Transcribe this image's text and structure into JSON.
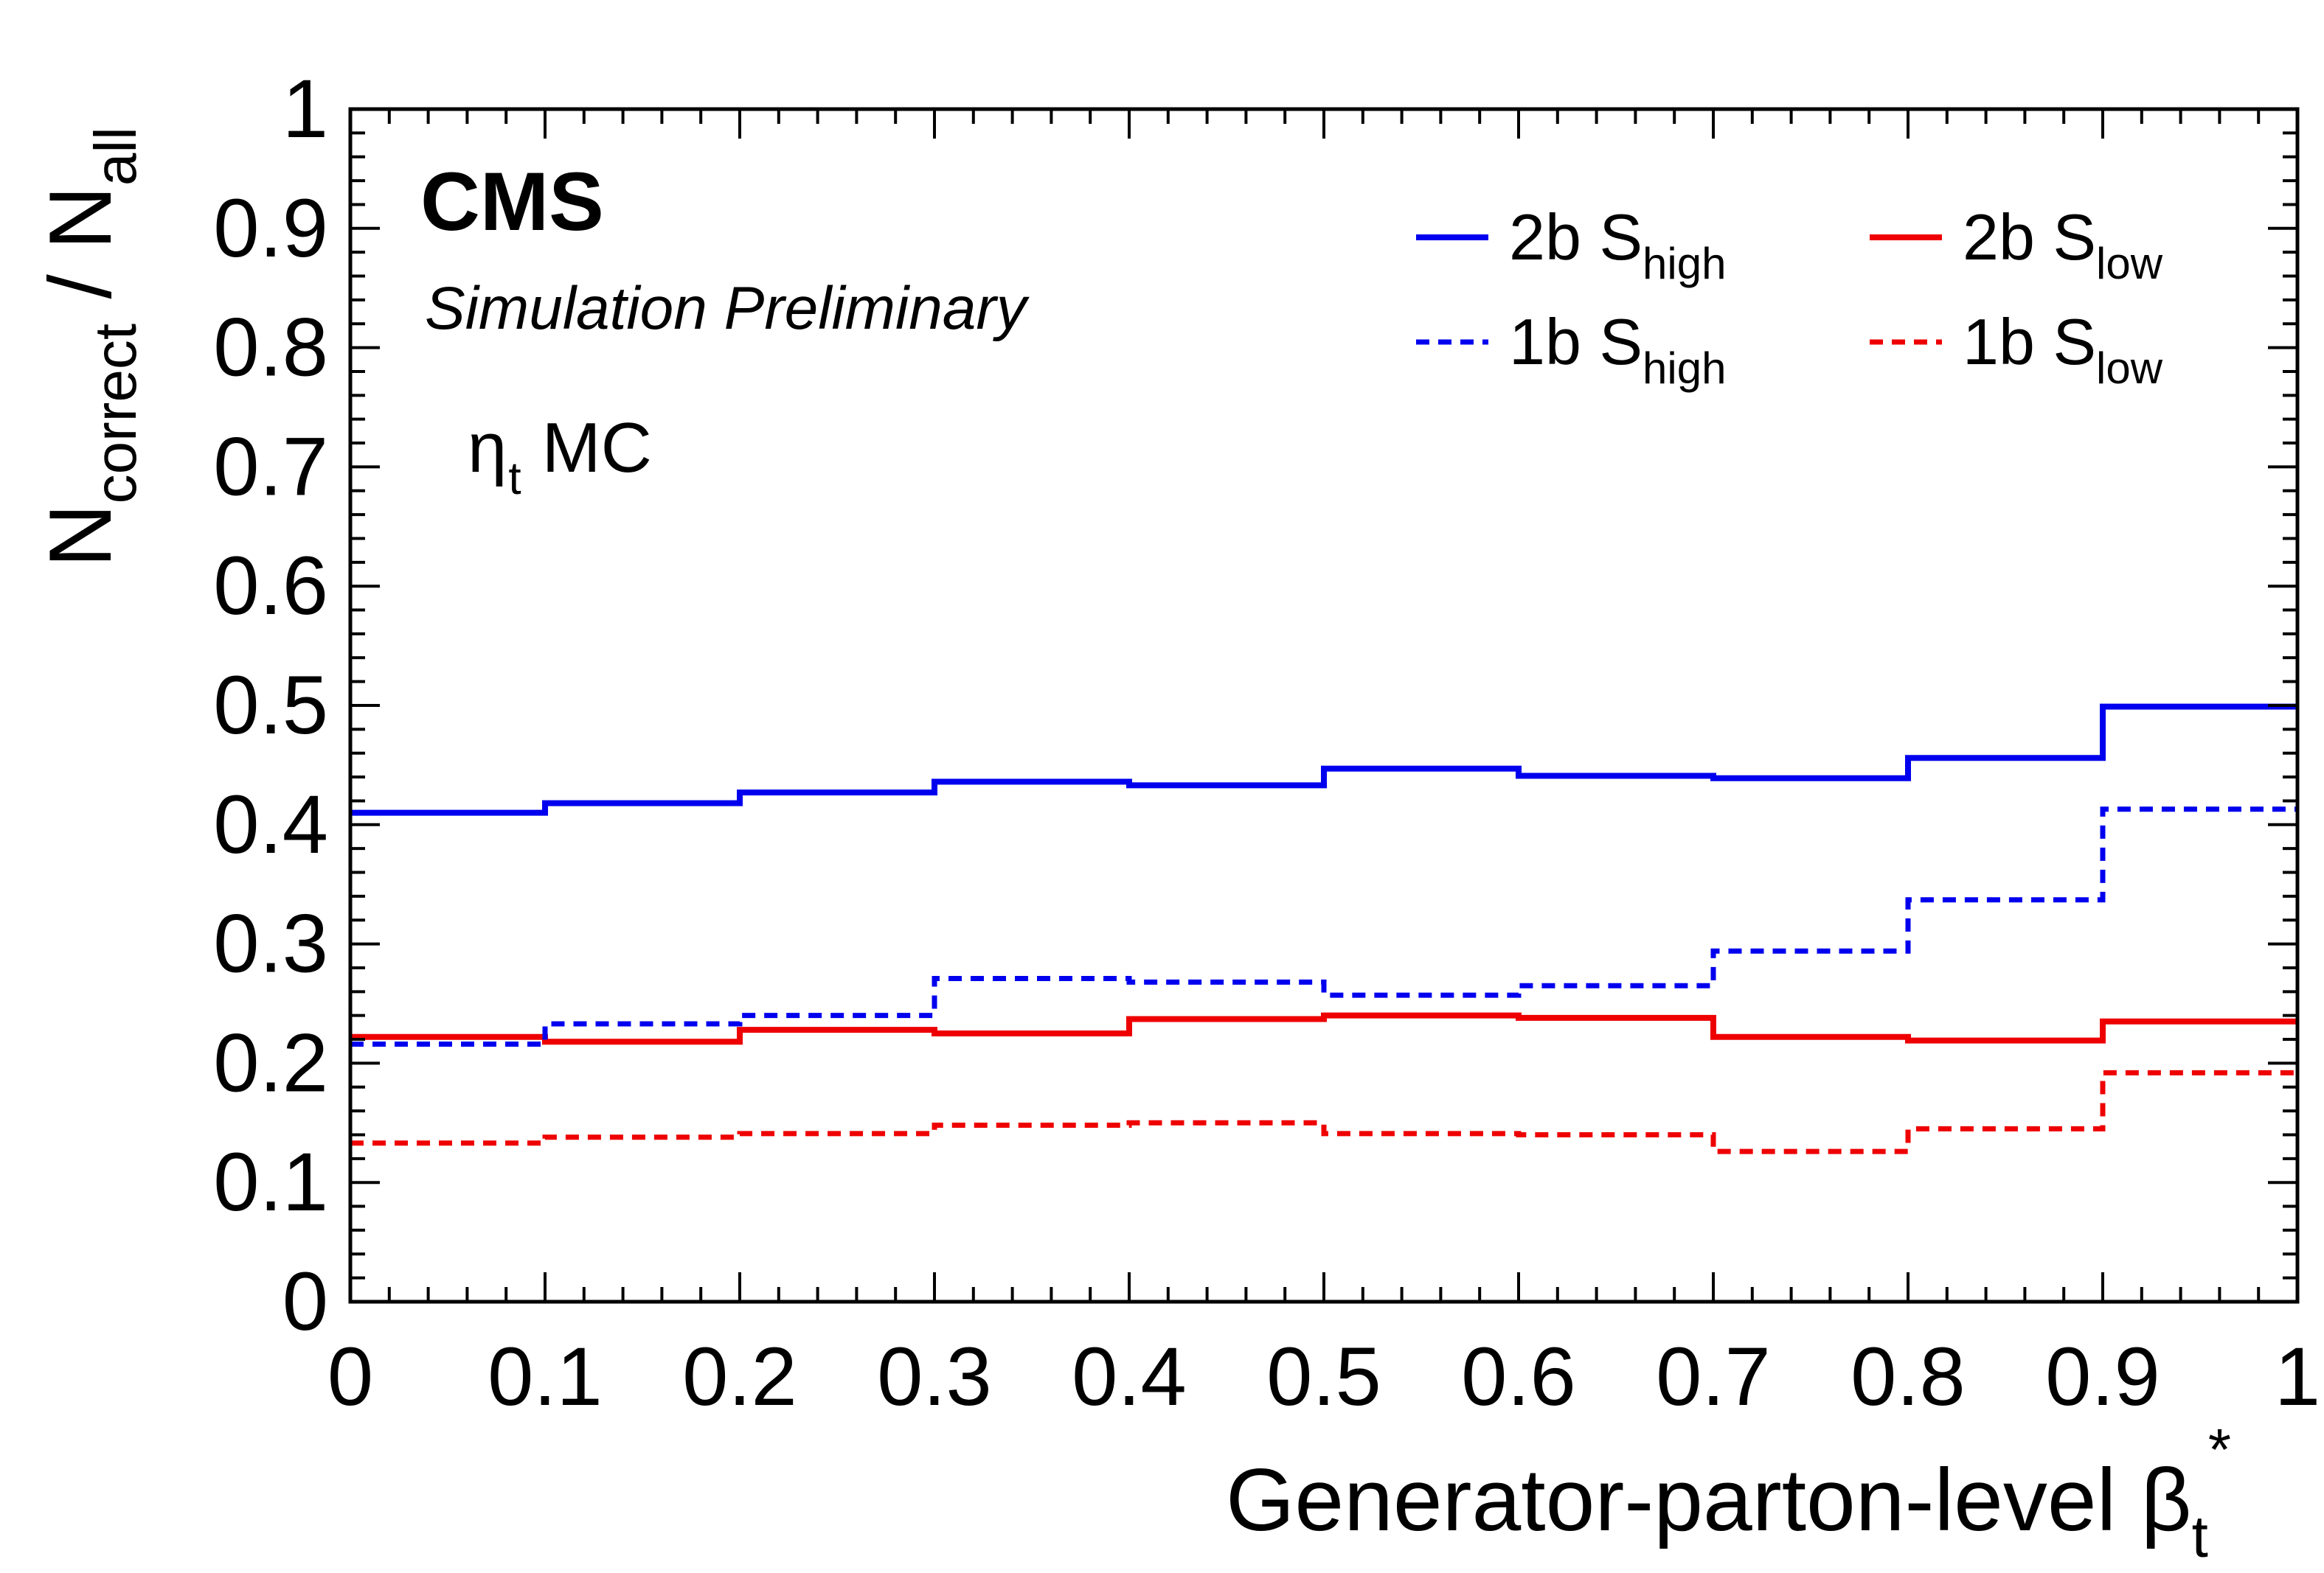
{
  "chart_data": {
    "type": "line",
    "style": "step-histogram",
    "title": "CMS",
    "subtitle": "Simulation Preliminary",
    "annotation": {
      "main": "η",
      "sub": "t",
      "suffix": "MC"
    },
    "xlabel": {
      "main": "Generator-parton-level β",
      "sub": "t",
      "sup": "*"
    },
    "ylabel": {
      "n1": "N",
      "n1_sub": "correct",
      "sep": " / ",
      "n2": "N",
      "n2_sub": "all"
    },
    "xlim": [
      0,
      1
    ],
    "ylim": [
      0,
      1
    ],
    "x_ticks": [
      "0",
      "0.1",
      "0.2",
      "0.3",
      "0.4",
      "0.5",
      "0.6",
      "0.7",
      "0.8",
      "0.9",
      "1"
    ],
    "y_ticks": [
      "0",
      "0.1",
      "0.2",
      "0.3",
      "0.4",
      "0.5",
      "0.6",
      "0.7",
      "0.8",
      "0.9",
      "1"
    ],
    "bin_edges": [
      0,
      0.1,
      0.2,
      0.3,
      0.4,
      0.5,
      0.6,
      0.7,
      0.8,
      0.9,
      1.0
    ],
    "series": [
      {
        "name": "2b S_high",
        "label_main": "2b S",
        "label_sub": "high",
        "color": "#0000ee",
        "dashed": false,
        "values": [
          0.41,
          0.418,
          0.427,
          0.436,
          0.433,
          0.447,
          0.441,
          0.439,
          0.456,
          0.499
        ]
      },
      {
        "name": "2b S_low",
        "label_main": "2b S",
        "label_sub": "low",
        "color": "#ee0000",
        "dashed": false,
        "values": [
          0.222,
          0.218,
          0.228,
          0.225,
          0.237,
          0.24,
          0.238,
          0.222,
          0.219,
          0.235
        ]
      },
      {
        "name": "1b S_high",
        "label_main": "1b S",
        "label_sub": "high",
        "color": "#0000ee",
        "dashed": true,
        "values": [
          0.216,
          0.233,
          0.24,
          0.271,
          0.268,
          0.257,
          0.265,
          0.294,
          0.337,
          0.413
        ]
      },
      {
        "name": "1b S_low",
        "label_main": "1b S",
        "label_sub": "low",
        "color": "#ee0000",
        "dashed": true,
        "values": [
          0.133,
          0.138,
          0.141,
          0.148,
          0.15,
          0.141,
          0.14,
          0.126,
          0.145,
          0.192
        ]
      }
    ],
    "legend_position": "top-right",
    "grid": false
  }
}
